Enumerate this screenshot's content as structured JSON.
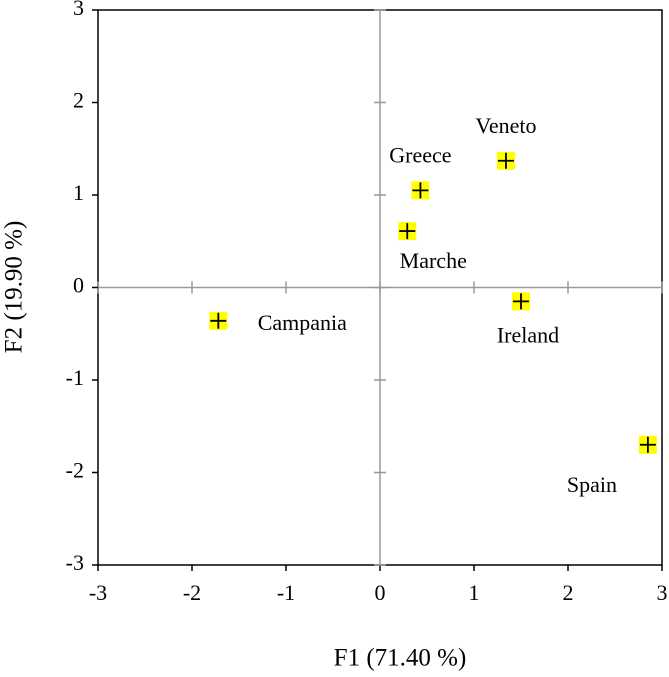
{
  "chart_data": {
    "type": "scatter",
    "x_label": "F1 (71.40 %)",
    "y_label": "F2 (19.90 %)",
    "labels": [
      "Campania",
      "Veneto",
      "Greece",
      "Marche",
      "Ireland",
      "Spain"
    ],
    "x": [
      -1.72,
      1.34,
      0.43,
      0.29,
      1.5,
      2.85
    ],
    "values": [
      -0.36,
      1.37,
      1.05,
      0.61,
      -0.15,
      -1.7
    ],
    "color": "#ffff00",
    "xlim": [
      -3,
      3
    ],
    "ylim": [
      -3,
      3
    ],
    "xticks": [
      -3,
      -2,
      -1,
      0,
      1,
      2,
      3
    ],
    "yticks": [
      -3,
      -2,
      -1,
      0,
      1,
      2,
      3
    ]
  }
}
